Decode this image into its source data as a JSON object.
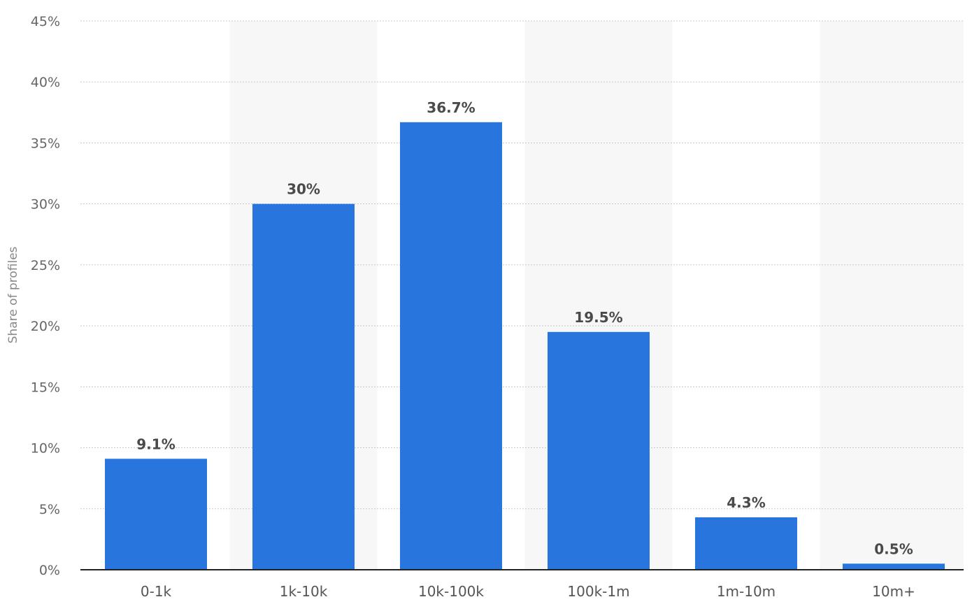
{
  "chart_data": {
    "type": "bar",
    "categories": [
      "0-1k",
      "1k-10k",
      "10k-100k",
      "100k-1m",
      "1m-10m",
      "10m+"
    ],
    "values": [
      9.1,
      30,
      36.7,
      19.5,
      4.3,
      0.5
    ],
    "value_labels": [
      "9.1%",
      "30%",
      "36.7%",
      "19.5%",
      "4.3%",
      "0.5%"
    ],
    "title": "",
    "xlabel": "",
    "ylabel": "Share of profiles",
    "ylim": [
      0,
      45
    ],
    "yticks": [
      0,
      5,
      10,
      15,
      20,
      25,
      30,
      35,
      40,
      45
    ],
    "ytick_labels": [
      "0%",
      "5%",
      "10%",
      "15%",
      "20%",
      "25%",
      "30%",
      "35%",
      "40%",
      "45%"
    ],
    "grid": true,
    "legend": "none",
    "colors": {
      "bar": "#2876dd",
      "band": "#f7f7f7",
      "grid": "#c8c8c8",
      "axis": "#222222"
    }
  }
}
